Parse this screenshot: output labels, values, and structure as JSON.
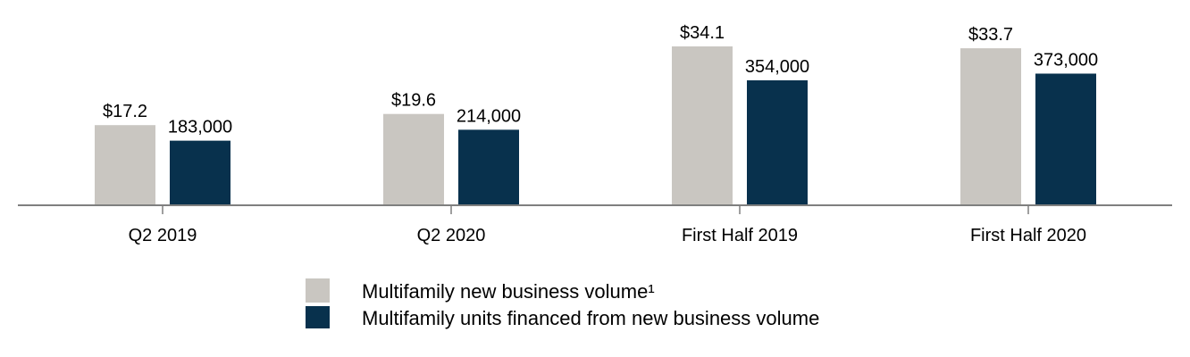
{
  "chart_data": {
    "type": "bar",
    "title": "",
    "xlabel": "",
    "ylabel": "",
    "categories": [
      "Q2 2019",
      "Q2 2020",
      "First Half 2019",
      "First Half 2020"
    ],
    "series": [
      {
        "name": "Multifamily new business volume¹",
        "values": [
          17.2,
          19.6,
          34.1,
          33.7
        ],
        "labels": [
          "$17.2",
          "$19.6",
          "$34.1",
          "$33.7"
        ],
        "color": "#c9c6c1"
      },
      {
        "name": "Multifamily units financed from new business volume",
        "values": [
          183000,
          214000,
          354000,
          373000
        ],
        "labels": [
          "183,000",
          "214,000",
          "354,000",
          "373,000"
        ],
        "color": "#08314d"
      }
    ],
    "grid": false,
    "legend_position": "bottom"
  }
}
